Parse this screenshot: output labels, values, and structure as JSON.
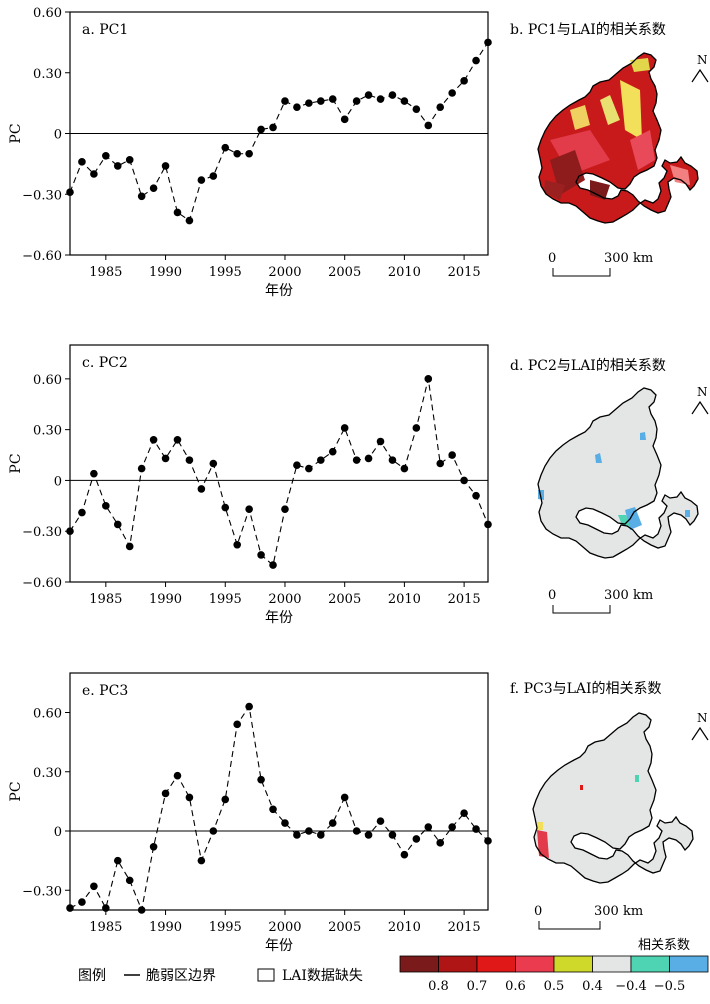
{
  "chart_data": [
    {
      "type": "line",
      "panel": "a. PC1",
      "xlabel": "年份",
      "ylabel": "PC",
      "xlim": [
        1982,
        2017
      ],
      "ylim": [
        -0.6,
        0.6
      ],
      "xticks": [
        "1985",
        "1990",
        "1995",
        "2000",
        "2005",
        "2010",
        "2015"
      ],
      "yticks": [
        "0.60",
        "0.30",
        "0",
        "−0.30",
        "−0.60"
      ],
      "x": [
        1982,
        1983,
        1984,
        1985,
        1986,
        1987,
        1988,
        1989,
        1990,
        1991,
        1992,
        1993,
        1994,
        1995,
        1996,
        1997,
        1998,
        1999,
        2000,
        2001,
        2002,
        2003,
        2004,
        2005,
        2006,
        2007,
        2008,
        2009,
        2010,
        2011,
        2012,
        2013,
        2014,
        2015,
        2016,
        2017
      ],
      "values": [
        -0.29,
        -0.14,
        -0.2,
        -0.11,
        -0.16,
        -0.13,
        -0.31,
        -0.27,
        -0.16,
        -0.39,
        -0.43,
        -0.23,
        -0.21,
        -0.07,
        -0.1,
        -0.1,
        0.02,
        0.03,
        0.16,
        0.13,
        0.15,
        0.16,
        0.17,
        0.07,
        0.16,
        0.19,
        0.17,
        0.19,
        0.16,
        0.12,
        0.04,
        0.13,
        0.2,
        0.26,
        0.36,
        0.45
      ]
    },
    {
      "type": "line",
      "panel": "c. PC2",
      "xlabel": "年份",
      "ylabel": "PC",
      "xlim": [
        1982,
        2017
      ],
      "ylim": [
        -0.6,
        0.8
      ],
      "xticks": [
        "1985",
        "1990",
        "1995",
        "2000",
        "2005",
        "2010",
        "2015"
      ],
      "yticks": [
        "0.60",
        "0.30",
        "0",
        "−0.30",
        "−0.60"
      ],
      "x": [
        1982,
        1983,
        1984,
        1985,
        1986,
        1987,
        1988,
        1989,
        1990,
        1991,
        1992,
        1993,
        1994,
        1995,
        1996,
        1997,
        1998,
        1999,
        2000,
        2001,
        2002,
        2003,
        2004,
        2005,
        2006,
        2007,
        2008,
        2009,
        2010,
        2011,
        2012,
        2013,
        2014,
        2015,
        2016,
        2017
      ],
      "values": [
        -0.3,
        -0.19,
        0.04,
        -0.15,
        -0.26,
        -0.39,
        0.07,
        0.24,
        0.13,
        0.24,
        0.12,
        -0.05,
        0.1,
        -0.16,
        -0.38,
        -0.17,
        -0.44,
        -0.5,
        -0.17,
        0.09,
        0.07,
        0.12,
        0.17,
        0.31,
        0.12,
        0.13,
        0.23,
        0.12,
        0.07,
        0.31,
        0.6,
        0.1,
        0.15,
        0.0,
        -0.09,
        -0.26
      ]
    },
    {
      "type": "line",
      "panel": "e. PC3",
      "xlabel": "年份",
      "ylabel": "PC",
      "xlim": [
        1982,
        2017
      ],
      "ylim": [
        -0.4,
        0.8
      ],
      "xticks": [
        "1985",
        "1990",
        "1995",
        "2000",
        "2005",
        "2010",
        "2015"
      ],
      "yticks": [
        "0.60",
        "0.30",
        "0",
        "−0.30"
      ],
      "x": [
        1982,
        1983,
        1984,
        1985,
        1986,
        1987,
        1988,
        1989,
        1990,
        1991,
        1992,
        1993,
        1994,
        1995,
        1996,
        1997,
        1998,
        1999,
        2000,
        2001,
        2002,
        2003,
        2004,
        2005,
        2006,
        2007,
        2008,
        2009,
        2010,
        2011,
        2012,
        2013,
        2014,
        2015,
        2016,
        2017
      ],
      "values": [
        -0.39,
        -0.36,
        -0.28,
        -0.39,
        -0.15,
        -0.25,
        -0.4,
        -0.08,
        0.19,
        0.28,
        0.17,
        -0.15,
        0.0,
        0.16,
        0.54,
        0.63,
        0.26,
        0.11,
        0.04,
        -0.02,
        0.0,
        -0.02,
        0.04,
        0.17,
        0.0,
        -0.02,
        0.05,
        -0.02,
        -0.12,
        -0.04,
        0.02,
        -0.06,
        0.02,
        0.09,
        0.01,
        -0.05
      ]
    }
  ],
  "maps": [
    {
      "title": "b. PC1与LAI的相关系数",
      "north": "N",
      "scale_zero": "0",
      "scale_label": "300 km"
    },
    {
      "title": "d. PC2与LAI的相关系数",
      "north": "N",
      "scale_zero": "0",
      "scale_label": "300 km"
    },
    {
      "title": "f. PC3与LAI的相关系数",
      "north": "N",
      "scale_zero": "0",
      "scale_label": "300 km"
    }
  ],
  "legend": {
    "label": "图例",
    "boundary": "脆弱区边界",
    "missing": "LAI数据缺失",
    "colorbar_title": "相关系数",
    "colors": [
      "#7a1a1a",
      "#b01515",
      "#e01818",
      "#ea3b4f",
      "#cfd92a",
      "#e4e5e5",
      "#4fd4b3",
      "#5aaee6"
    ],
    "tick_labels": [
      "0.8",
      "0.7",
      "0.6",
      "0.5",
      "0.4",
      "−0.4",
      "−0.5"
    ]
  }
}
